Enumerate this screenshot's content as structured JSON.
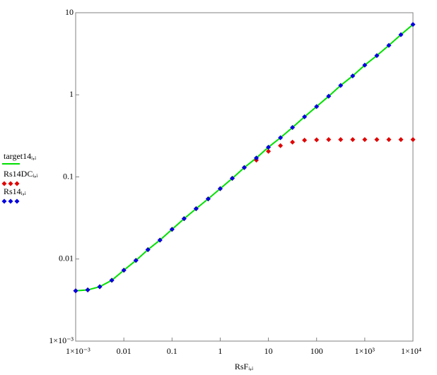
{
  "chart_data": {
    "type": "line",
    "x_label": "RsFᵢ,ᵢ",
    "x": [
      0.001,
      0.00178,
      0.00316,
      0.00562,
      0.01,
      0.0178,
      0.0316,
      0.0562,
      0.1,
      0.178,
      0.316,
      0.562,
      1,
      1.78,
      3.16,
      5.62,
      10,
      17.8,
      31.6,
      56.2,
      100,
      178,
      316,
      562,
      1000,
      1780,
      3160,
      5620,
      10000
    ],
    "series": [
      {
        "name": "target14ᵢ,ᵢ",
        "color": "#00e000",
        "style": "line",
        "values": [
          0.0041,
          0.0042,
          0.0046,
          0.0055,
          0.0073,
          0.0096,
          0.013,
          0.017,
          0.023,
          0.031,
          0.041,
          0.054,
          0.072,
          0.096,
          0.13,
          0.17,
          0.23,
          0.3,
          0.4,
          0.54,
          0.72,
          0.96,
          1.3,
          1.7,
          2.3,
          3.0,
          4.0,
          5.4,
          7.2
        ]
      },
      {
        "name": "Rs14DCᵢ,ᵢ",
        "color": "#e00000",
        "style": "points",
        "values": [
          0.0041,
          0.0042,
          0.0046,
          0.0055,
          0.0073,
          0.0096,
          0.013,
          0.017,
          0.023,
          0.031,
          0.041,
          0.054,
          0.072,
          0.096,
          0.13,
          0.16,
          0.205,
          0.24,
          0.265,
          0.28,
          0.283,
          0.285,
          0.285,
          0.285,
          0.285,
          0.285,
          0.285,
          0.285,
          0.285
        ]
      },
      {
        "name": "Rs14ᵢ,ᵢ",
        "color": "#0000e0",
        "style": "points",
        "values": [
          0.0041,
          0.0042,
          0.0046,
          0.0055,
          0.0073,
          0.0096,
          0.013,
          0.017,
          0.023,
          0.031,
          0.041,
          0.054,
          0.072,
          0.096,
          0.13,
          0.17,
          0.23,
          0.3,
          0.4,
          0.54,
          0.72,
          0.96,
          1.3,
          1.7,
          2.3,
          3.0,
          4.0,
          5.4,
          7.2
        ]
      }
    ],
    "log_x": true,
    "log_y": true,
    "xlim": [
      0.001,
      10000
    ],
    "xticks": [
      {
        "value": 0.001,
        "label": "1×10⁻³"
      },
      0.01,
      0.1,
      1,
      10,
      100,
      {
        "value": 1000,
        "label": "1×10³"
      },
      {
        "value": 10000,
        "label": "1×10⁴"
      }
    ],
    "ylim": [
      0.001,
      10
    ],
    "yticks": [
      {
        "value": 0.001,
        "label": "1×10⁻³"
      },
      0.01,
      0.1,
      1,
      10
    ],
    "grid": false,
    "legend": "left"
  }
}
